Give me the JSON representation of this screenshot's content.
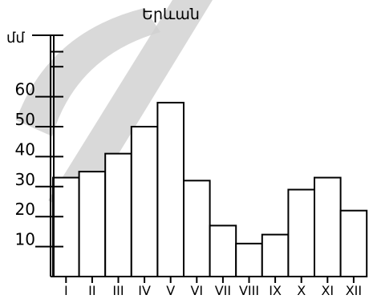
{
  "watermark": {
    "color": "#c8c8c8",
    "glyph": "large-stroke-watermark"
  },
  "chart_data": {
    "type": "bar",
    "title": "Երևան",
    "ylabel": "մմ",
    "xlabel": "",
    "categories": [
      "I",
      "II",
      "III",
      "IV",
      "V",
      "VI",
      "VII",
      "VIII",
      "IX",
      "X",
      "XI",
      "XII"
    ],
    "values": [
      33,
      35,
      41,
      50,
      58,
      32,
      17,
      11,
      14,
      29,
      33,
      22
    ],
    "yticks": [
      10,
      20,
      30,
      40,
      50,
      60
    ],
    "ylim": [
      0,
      80
    ],
    "grid": false,
    "bar_color": "#ffffff",
    "edge_color": "#000000"
  }
}
